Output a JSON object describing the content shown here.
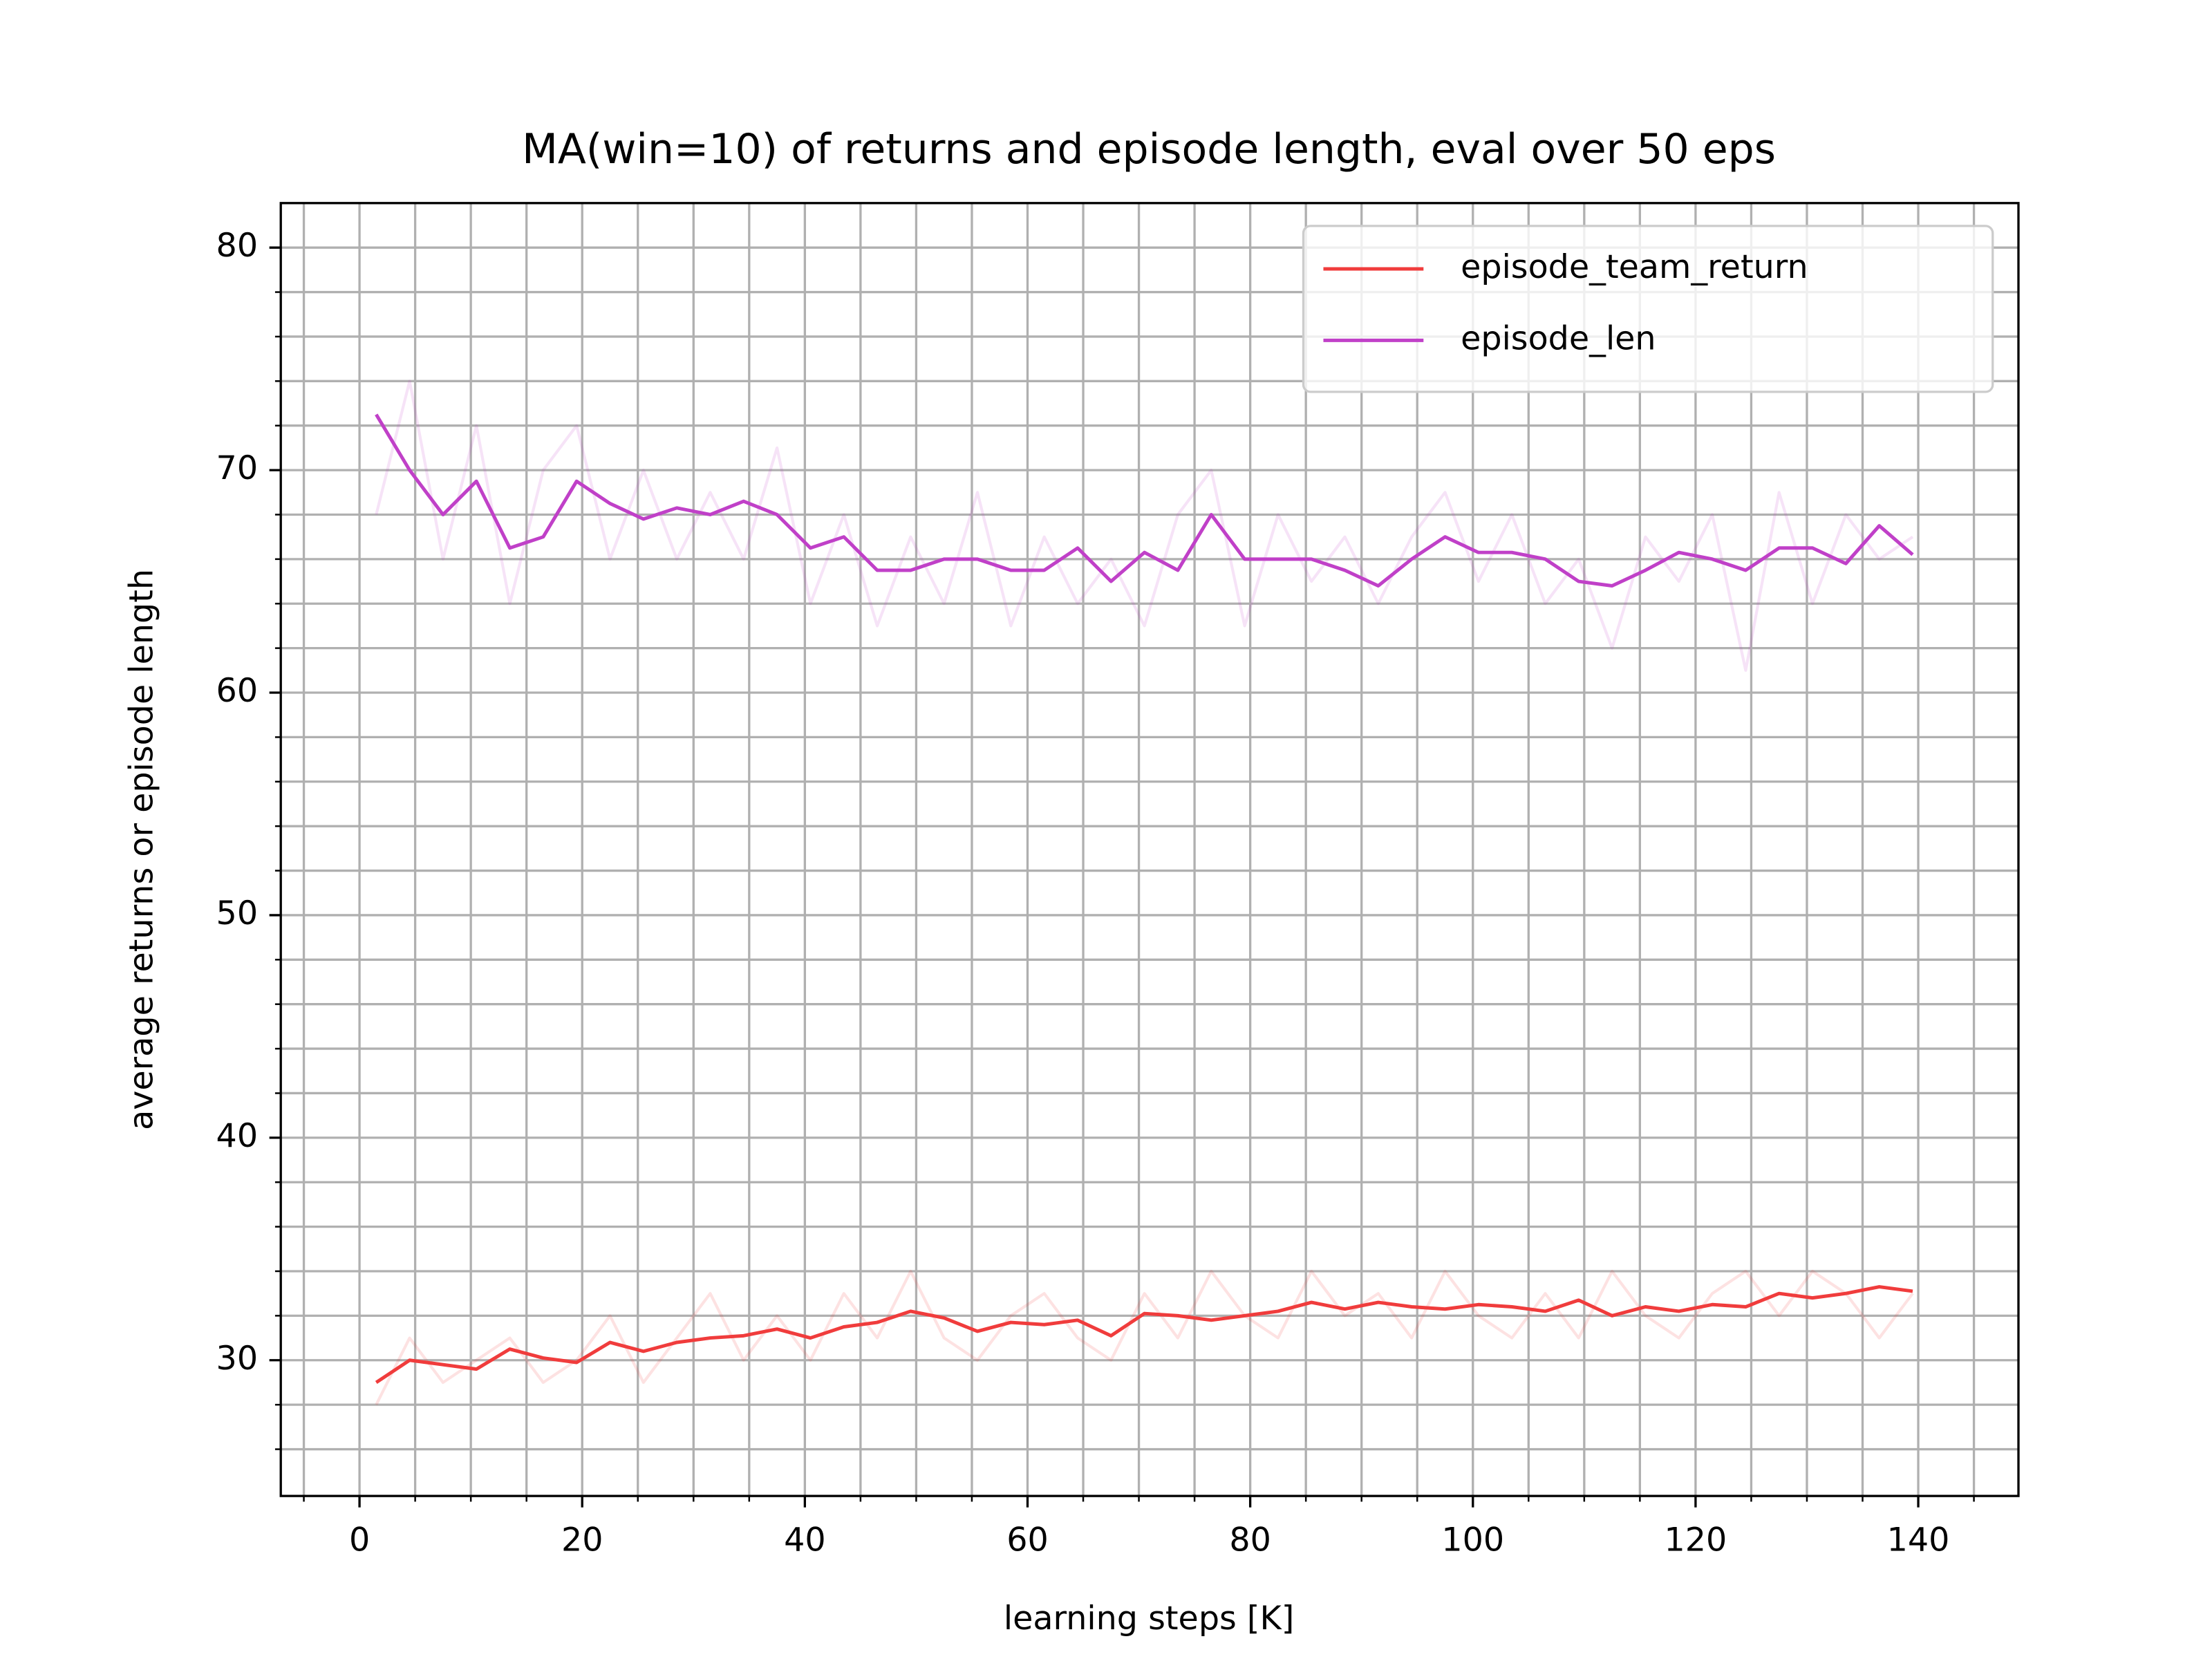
{
  "chart_data": {
    "type": "line",
    "title": "MA(win=10) of returns and episode length, eval over 50 eps",
    "xlabel": "learning steps [K]",
    "ylabel": "average returns or episode length",
    "x": [
      1.5,
      4.5,
      7.5,
      10.5,
      13.5,
      16.5,
      19.5,
      22.5,
      25.5,
      28.5,
      31.5,
      34.5,
      37.5,
      40.5,
      43.5,
      46.5,
      49.5,
      52.5,
      55.5,
      58.5,
      61.5,
      64.5,
      67.5,
      70.5,
      73.5,
      76.5,
      79.5,
      82.5,
      85.5,
      88.5,
      91.5,
      94.5,
      97.5,
      100.5,
      103.5,
      106.5,
      109.5,
      112.5,
      115.5,
      118.5,
      121.5,
      124.5,
      127.5,
      130.5,
      133.5,
      136.5,
      139.5
    ],
    "series": [
      {
        "color": "#f03c3c",
        "alpha": 0.15,
        "values": [
          28,
          31,
          29,
          30,
          31,
          29,
          30,
          32,
          29,
          31,
          33,
          30,
          32,
          30,
          33,
          31,
          34,
          31,
          30,
          32,
          33,
          31,
          30,
          33,
          31,
          34,
          32,
          31,
          34,
          32,
          33,
          31,
          34,
          32,
          31,
          33,
          31,
          34,
          32,
          31,
          33,
          34,
          32,
          34,
          33,
          31,
          33
        ]
      },
      {
        "color": "#c040c8",
        "alpha": 0.15,
        "values": [
          68,
          74,
          66,
          72,
          64,
          70,
          72,
          66,
          70,
          66,
          69,
          66,
          71,
          64,
          68,
          63,
          67,
          64,
          69,
          63,
          67,
          64,
          66,
          63,
          68,
          70,
          63,
          68,
          65,
          67,
          64,
          67,
          69,
          65,
          68,
          64,
          66,
          62,
          67,
          65,
          68,
          61,
          69,
          64,
          68,
          66,
          67
        ]
      },
      {
        "name": "episode_team_return",
        "color": "#f03c3c",
        "alpha": 1,
        "values": [
          29,
          30,
          29.8,
          29.6,
          30.5,
          30.1,
          29.9,
          30.8,
          30.4,
          30.8,
          31,
          31.1,
          31.4,
          31,
          31.5,
          31.7,
          32.2,
          31.9,
          31.3,
          31.7,
          31.6,
          31.8,
          31.1,
          32.1,
          32,
          31.8,
          32,
          32.2,
          32.6,
          32.3,
          32.6,
          32.4,
          32.3,
          32.5,
          32.4,
          32.2,
          32.7,
          32,
          32.4,
          32.2,
          32.5,
          32.4,
          33,
          32.8,
          33,
          33.3,
          33.1
        ]
      },
      {
        "name": "episode_len",
        "color": "#c040c8",
        "alpha": 1,
        "values": [
          72.5,
          70,
          68,
          69.5,
          66.5,
          67,
          69.5,
          68.5,
          67.8,
          68.3,
          68,
          68.6,
          68,
          66.5,
          67,
          65.5,
          65.5,
          66,
          66,
          65.5,
          65.5,
          66.5,
          65,
          66.3,
          65.5,
          68,
          66,
          66,
          66,
          65.5,
          64.8,
          66,
          67,
          66.3,
          66.3,
          66,
          65,
          64.8,
          65.5,
          66.3,
          66,
          65.5,
          66.5,
          66.5,
          65.8,
          67.5,
          66.2
        ]
      }
    ],
    "xlim": [
      -7.07,
      149
    ],
    "ylim": [
      23.9,
      82
    ],
    "xticks": [
      0,
      20,
      40,
      60,
      80,
      100,
      120,
      140
    ],
    "xticks_minor": [
      -5,
      5,
      10,
      15,
      25,
      30,
      35,
      45,
      50,
      55,
      65,
      70,
      75,
      85,
      90,
      95,
      105,
      110,
      115,
      125,
      130,
      135,
      145
    ],
    "yticks": [
      30,
      40,
      50,
      60,
      70,
      80
    ],
    "yticks_minor": [
      26,
      28,
      32,
      34,
      36,
      38,
      42,
      44,
      46,
      48,
      52,
      54,
      56,
      58,
      62,
      64,
      66,
      68,
      72,
      74,
      76,
      78
    ],
    "grid": true,
    "legend": "upper right"
  }
}
